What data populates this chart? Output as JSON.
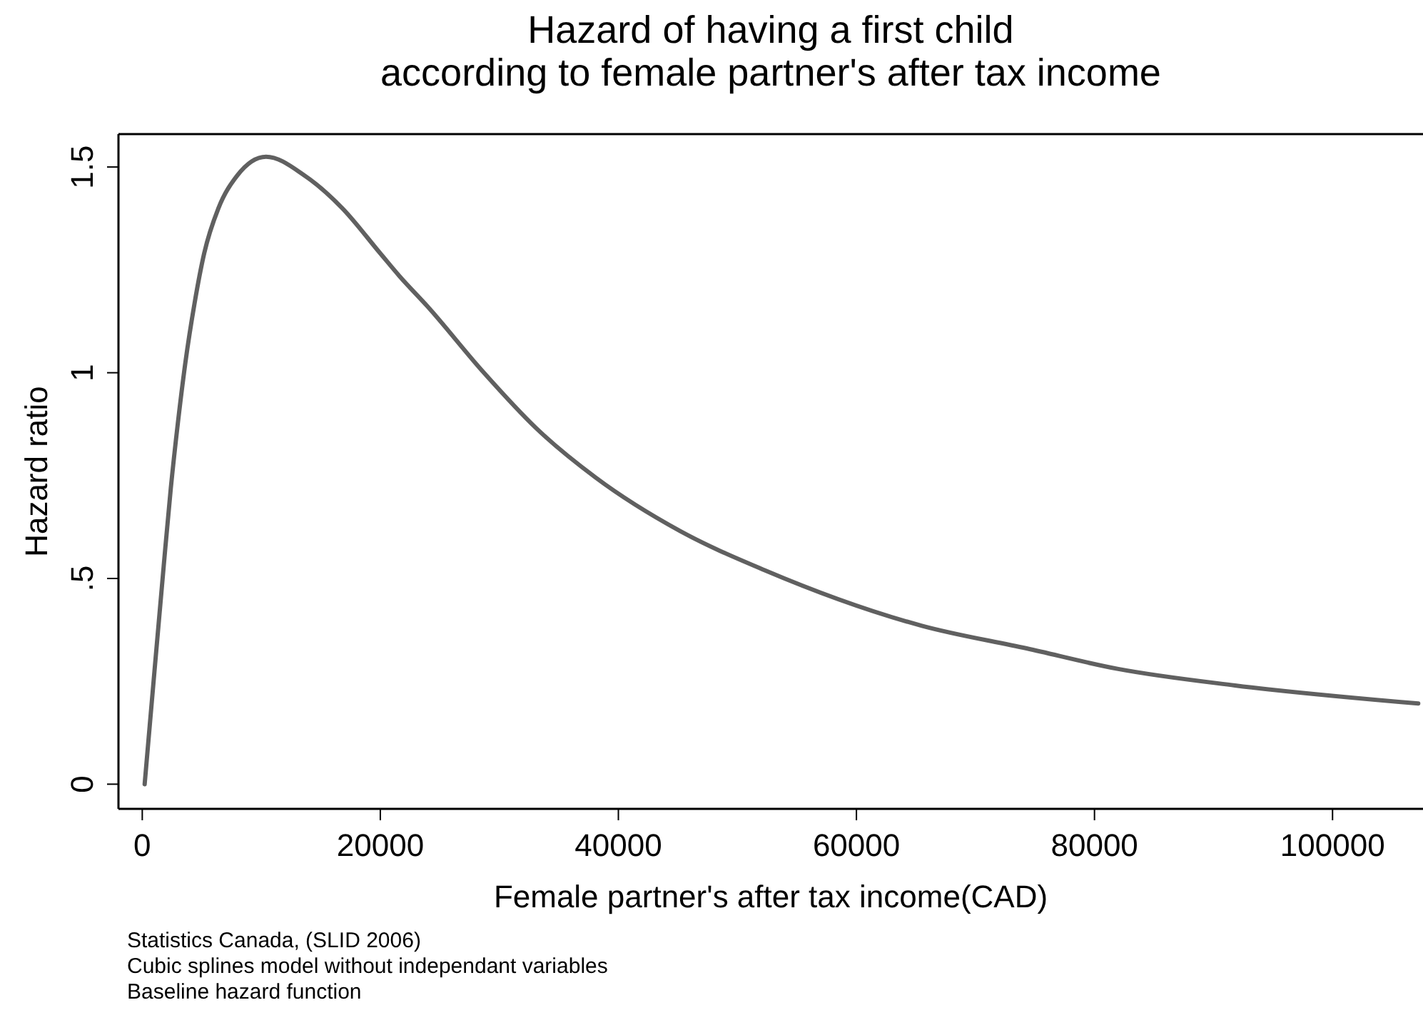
{
  "chart_data": {
    "type": "line",
    "title": "Hazard of having a first child\naccording to female partner's after tax income",
    "xlabel": "Female partner's after tax income(CAD)",
    "ylabel": "Hazard ratio",
    "x": [
      200,
      800,
      1800,
      2400,
      3000,
      3600,
      4400,
      5200,
      6400,
      8000,
      10400,
      13600,
      16800,
      20000,
      21600,
      24000,
      28700,
      33100,
      38100,
      45200,
      52300,
      65500,
      74300,
      82000,
      91800,
      107200
    ],
    "series": [
      {
        "color": "#606060",
        "values": [
          0,
          0.2,
          0.53,
          0.72,
          0.88,
          1.02,
          1.17,
          1.29,
          1.4,
          1.48,
          1.525,
          1.48,
          1.4,
          1.29,
          1.235,
          1.16,
          1.0,
          0.865,
          0.745,
          0.615,
          0.52,
          0.385,
          0.33,
          0.28,
          0.24,
          0.196
        ]
      }
    ],
    "xlim": [
      -2000,
      107600
    ],
    "xticks": [
      0,
      20000,
      40000,
      60000,
      80000,
      100000
    ],
    "ylim": [
      -0.06,
      1.58
    ],
    "yticks": [
      0,
      {
        "value": 0.5,
        "label": ".5"
      },
      1,
      1.5
    ],
    "line_style": "solid",
    "marker": "none",
    "annotations": [
      "Statistics Canada, (SLID 2006)",
      "Cubic splines model without independant variables",
      "Baseline hazard function"
    ]
  }
}
